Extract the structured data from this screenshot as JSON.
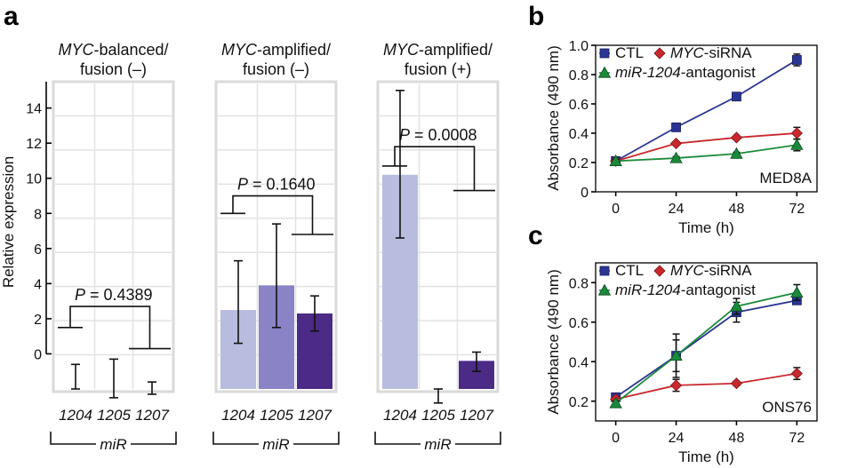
{
  "panel_labels": {
    "a": "a",
    "b": "b",
    "c": "c"
  },
  "colors": {
    "mir1204": "#b8bcdf",
    "mir1205": "#8a83c6",
    "mir1207": "#4b2b86",
    "ctl": "#2b3593",
    "myc_sirna": "#c8282d",
    "antagonist": "#1a8a3a"
  },
  "chart_data": [
    {
      "id": "a",
      "type": "bar",
      "ylabel": "Relative expression",
      "ylim": [
        -2,
        15.5
      ],
      "yticks": [
        0,
        2,
        4,
        6,
        8,
        10,
        12,
        14
      ],
      "yticklabels": [
        "0",
        "2",
        "4",
        "6",
        "8",
        "10",
        "12",
        "14"
      ],
      "categories": [
        "1204",
        "1205",
        "1207"
      ],
      "category_group_label": "miR",
      "groups": [
        {
          "title_italic": "MYC",
          "title_rest": "-balanced/",
          "title_line2": "fusion (–)",
          "values": [
            -2,
            -2,
            -2
          ],
          "err_low": [
            -2,
            -2.5,
            -2.3
          ],
          "err_high": [
            -0.6,
            -0.3,
            -1.6
          ],
          "pvalue_prefix": "P",
          "pvalue_text": " = 0.4389",
          "bracket_left_y": 1.5,
          "bracket_right_y": 0.3,
          "bracket_top_y": 2.7
        },
        {
          "title_italic": "MYC",
          "title_rest": "-amplified/",
          "title_line2": "fusion (–)",
          "values": [
            2.5,
            3.9,
            2.3
          ],
          "err_low": [
            0.6,
            1.5,
            1.3
          ],
          "err_high": [
            5.3,
            7.4,
            3.3
          ],
          "pvalue_prefix": "P",
          "pvalue_text": " = 0.1640",
          "bracket_left_y": 8.0,
          "bracket_right_y": 6.8,
          "bracket_top_y": 9.0
        },
        {
          "title_italic": "MYC",
          "title_rest": "-amplified/",
          "title_line2": "fusion (+)",
          "values": [
            10.2,
            -2.6,
            -0.4
          ],
          "err_low": [
            6.6,
            -2.8,
            -1.0
          ],
          "err_high": [
            15.0,
            -2.0,
            0.1
          ],
          "pvalue_prefix": "P",
          "pvalue_text": " = 0.0008",
          "bracket_left_y": 10.7,
          "bracket_right_y": 9.3,
          "bracket_top_y": 11.8
        }
      ]
    },
    {
      "id": "b",
      "type": "line",
      "xlabel": "Time (h)",
      "ylabel": "Absorbance (490 nm)",
      "x": [
        0,
        24,
        48,
        72
      ],
      "xticklabels": [
        "0",
        "24",
        "48",
        "72"
      ],
      "xlim": [
        -8,
        80
      ],
      "ylim": [
        0,
        1.0
      ],
      "yticks": [
        0,
        0.2,
        0.4,
        0.6,
        0.8,
        1.0
      ],
      "yticklabels": [
        "0",
        "0.2",
        "0.4",
        "0.6",
        "0.8",
        "1.0"
      ],
      "annotation": "MED8A",
      "legend_row1": [
        {
          "label": "CTL"
        },
        {
          "label_italic": "MYC",
          "label": "-siRNA"
        }
      ],
      "legend_row2": [
        {
          "label_italic": "miR-1204",
          "label": "-antagonist"
        }
      ],
      "series": [
        {
          "key": "ctl",
          "marker": "square",
          "values": [
            0.21,
            0.44,
            0.65,
            0.9
          ],
          "err": [
            0.01,
            0.01,
            0.01,
            0.04
          ]
        },
        {
          "key": "myc_sirna",
          "marker": "diamond",
          "values": [
            0.21,
            0.33,
            0.37,
            0.4
          ],
          "err": [
            0.01,
            0.01,
            0.01,
            0.04
          ]
        },
        {
          "key": "antagonist",
          "marker": "triangle",
          "values": [
            0.21,
            0.23,
            0.26,
            0.32
          ],
          "err": [
            0.01,
            0.01,
            0.01,
            0.04
          ]
        }
      ]
    },
    {
      "id": "c",
      "type": "line",
      "xlabel": "Time (h)",
      "ylabel": "Absorbance (490 nm)",
      "x": [
        0,
        24,
        48,
        72
      ],
      "xticklabels": [
        "0",
        "24",
        "48",
        "72"
      ],
      "xlim": [
        -8,
        80
      ],
      "ylim": [
        0.1,
        0.9
      ],
      "yticks": [
        0.2,
        0.4,
        0.6,
        0.8
      ],
      "yticklabels": [
        "0.2",
        "0.4",
        "0.6",
        "0.8"
      ],
      "annotation": "ONS76",
      "legend_row1": [
        {
          "label": "CTL"
        },
        {
          "label_italic": "MYC",
          "label": "-siRNA"
        }
      ],
      "legend_row2": [
        {
          "label_italic": "miR-1204",
          "label": "-antagonist"
        }
      ],
      "series": [
        {
          "key": "ctl",
          "marker": "square",
          "values": [
            0.22,
            0.43,
            0.65,
            0.71
          ],
          "err": [
            0.01,
            0.11,
            0.05,
            0.01
          ]
        },
        {
          "key": "myc_sirna",
          "marker": "diamond",
          "values": [
            0.21,
            0.28,
            0.29,
            0.34
          ],
          "err": [
            0.01,
            0.03,
            0.01,
            0.03
          ]
        },
        {
          "key": "antagonist",
          "marker": "triangle",
          "values": [
            0.19,
            0.43,
            0.68,
            0.75
          ],
          "err": [
            0.01,
            0.08,
            0.04,
            0.04
          ]
        }
      ]
    }
  ]
}
